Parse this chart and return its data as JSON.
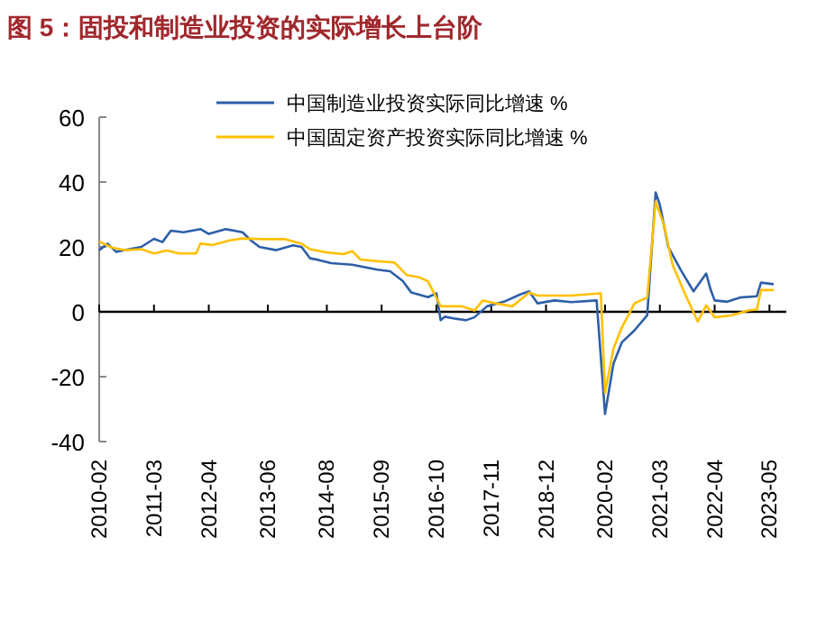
{
  "chart_data": {
    "type": "line",
    "title": "图 5：固投和制造业投资的实际增长上台阶",
    "ylim": [
      -40,
      60
    ],
    "yticks": [
      -40,
      -20,
      0,
      20,
      40,
      60
    ],
    "xlim": [
      "2010-02",
      "2023-09"
    ],
    "xticks": [
      "2010-02",
      "2011-03",
      "2012-04",
      "2013-06",
      "2014-08",
      "2015-09",
      "2016-10",
      "2017-11",
      "2018-12",
      "2020-02",
      "2021-03",
      "2022-04",
      "2023-05"
    ],
    "legend": "top",
    "series": [
      {
        "name": "中国制造业投资实际同比增速 %",
        "color": "#2e5fa8",
        "x": [
          "2010-02",
          "2010-04",
          "2010-06",
          "2010-12",
          "2011-03",
          "2011-05",
          "2011-07",
          "2011-10",
          "2012-02",
          "2012-04",
          "2012-08",
          "2012-12",
          "2013-02",
          "2013-04",
          "2013-08",
          "2013-12",
          "2014-02",
          "2014-04",
          "2014-06",
          "2014-09",
          "2015-02",
          "2015-08",
          "2015-11",
          "2016-02",
          "2016-04",
          "2016-08",
          "2016-10",
          "2016-11",
          "2016-12",
          "2017-02",
          "2017-05",
          "2017-07",
          "2017-10",
          "2018-02",
          "2018-06",
          "2018-08",
          "2018-10",
          "2019-02",
          "2019-06",
          "2019-12",
          "2020-02",
          "2020-04",
          "2020-06",
          "2020-09",
          "2020-12",
          "2021-02",
          "2021-03",
          "2021-05",
          "2021-08",
          "2021-11",
          "2022-02",
          "2022-03",
          "2022-04",
          "2022-07",
          "2022-10",
          "2023-02",
          "2023-03",
          "2023-06"
        ],
        "values": [
          19,
          21,
          18.5,
          20,
          22.5,
          21.5,
          25,
          24.5,
          25.5,
          24,
          25.5,
          24.5,
          22,
          20,
          19,
          20.5,
          20,
          16.5,
          16,
          15,
          14.5,
          13,
          12.5,
          9.5,
          6,
          4.5,
          5.7,
          -2.6,
          -1.5,
          -2,
          -2.6,
          -1.7,
          1.7,
          3.1,
          5.4,
          6.3,
          2.6,
          3.5,
          3,
          3.5,
          -31.5,
          -16,
          -9.4,
          -5.7,
          -1.1,
          36.8,
          33,
          20,
          12.8,
          6.3,
          11.8,
          7,
          3.5,
          3.1,
          4.4,
          4.8,
          9,
          8.5
        ]
      },
      {
        "name": "中国固定资产投资实际同比增速 %",
        "color": "#ffc000",
        "x": [
          "2010-02",
          "2010-05",
          "2010-08",
          "2010-12",
          "2011-03",
          "2011-06",
          "2011-09",
          "2012-01",
          "2012-02",
          "2012-05",
          "2012-09",
          "2012-12",
          "2013-05",
          "2013-10",
          "2014-02",
          "2014-04",
          "2014-08",
          "2014-12",
          "2015-02",
          "2015-04",
          "2015-08",
          "2015-12",
          "2016-03",
          "2016-06",
          "2016-08",
          "2016-11",
          "2017-04",
          "2017-07",
          "2017-09",
          "2017-12",
          "2018-04",
          "2018-08",
          "2018-10",
          "2019-06",
          "2020-01",
          "2020-02",
          "2020-04",
          "2020-06",
          "2020-09",
          "2020-12",
          "2021-02",
          "2021-04",
          "2021-06",
          "2021-09",
          "2021-12",
          "2022-02",
          "2022-04",
          "2022-08",
          "2022-12",
          "2023-02",
          "2023-03",
          "2023-06"
        ],
        "values": [
          21.7,
          19.8,
          19,
          19.3,
          18,
          18.9,
          18,
          18,
          21,
          20.6,
          22,
          22.6,
          22.4,
          22.4,
          21,
          19.3,
          18.3,
          17.8,
          18.7,
          16.1,
          15.6,
          15.2,
          11.3,
          10.6,
          9.4,
          1.7,
          1.7,
          0.4,
          3.5,
          2.6,
          1.7,
          5.9,
          5,
          5,
          5.7,
          -25,
          -11.3,
          -4.8,
          2.6,
          4.4,
          34,
          26.7,
          14.6,
          5.4,
          -3,
          2,
          -1.7,
          -1.1,
          0.4,
          0.7,
          6.7,
          6.7
        ]
      }
    ]
  }
}
